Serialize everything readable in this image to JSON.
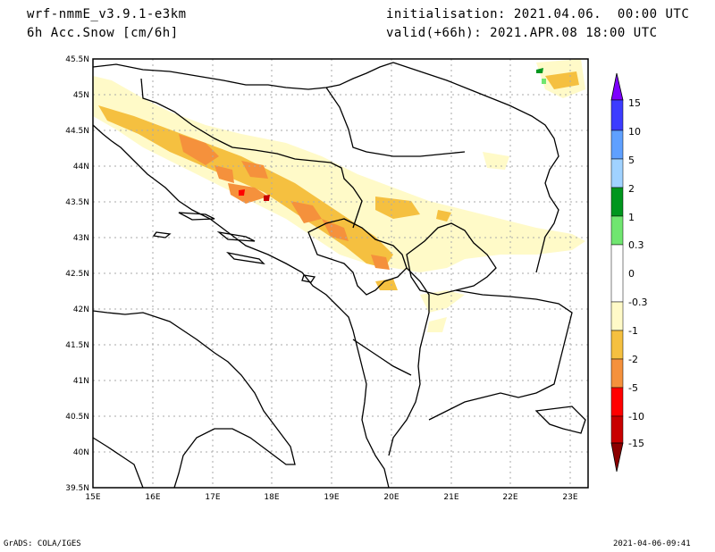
{
  "header": {
    "model": "wrf-nmmE_v3.9.1-e3km",
    "field": "6h Acc.Snow [cm/6h]",
    "init": "initialisation: 2021.04.06.  00:00 UTC",
    "valid": "valid(+66h): 2021.APR.08 18:00 UTC"
  },
  "footer": {
    "left": "GrADS: COLA/IGES",
    "right": "2021-04-06-09:41"
  },
  "map": {
    "lon_min": 15,
    "lon_max": 23.3,
    "lat_min": 39.5,
    "lat_max": 45.5,
    "lat_ticks": [
      "45.5N",
      "45N",
      "44.5N",
      "44N",
      "43.5N",
      "43N",
      "42.5N",
      "42N",
      "41.5N",
      "41N",
      "40.5N",
      "40N",
      "39.5N"
    ],
    "lon_ticks": [
      "15E",
      "16E",
      "17E",
      "18E",
      "19E",
      "20E",
      "21E",
      "22E",
      "23E"
    ]
  },
  "colorbar": {
    "labels": [
      "15",
      "10",
      "5",
      "2",
      "1",
      "0.3",
      "0",
      "-0.3",
      "-1",
      "-2",
      "-5",
      "-10",
      "-15"
    ],
    "colors": [
      "#7d00ff",
      "#3c3cff",
      "#5fa0ff",
      "#a0d2ff",
      "#00961e",
      "#70e670",
      "#ffffff",
      "#fffac8",
      "#f5c040",
      "#f5913c",
      "#ff0000",
      "#c80000",
      "#8b0000"
    ]
  }
}
